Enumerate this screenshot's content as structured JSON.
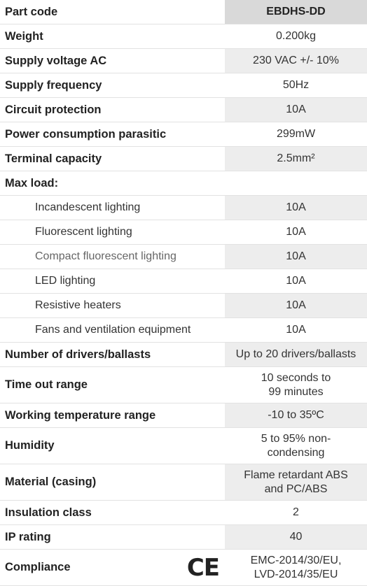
{
  "rows": [
    {
      "label": "Part code",
      "value": "EBDHS-DD"
    },
    {
      "label": "Weight",
      "value": "0.200kg"
    },
    {
      "label": "Supply voltage AC",
      "value": "230 VAC +/- 10%"
    },
    {
      "label": "Supply frequency",
      "value": "50Hz"
    },
    {
      "label": "Circuit protection",
      "value": "10A"
    },
    {
      "label": "Power consumption parasitic",
      "value": "299mW"
    },
    {
      "label": "Terminal capacity",
      "value": "2.5mm²"
    },
    {
      "label": "Max load:",
      "value": ""
    },
    {
      "label": "Incandescent lighting",
      "value": "10A"
    },
    {
      "label": "Fluorescent lighting",
      "value": "10A"
    },
    {
      "label": "Compact fluorescent lighting",
      "value": "10A"
    },
    {
      "label": "LED lighting",
      "value": "10A"
    },
    {
      "label": "Resistive heaters",
      "value": "10A"
    },
    {
      "label": "Fans and ventilation equipment",
      "value": "10A"
    },
    {
      "label": "Number of drivers/ballasts",
      "value": "Up to 20 drivers/ballasts"
    },
    {
      "label": "Time out range",
      "value_line1": "10 seconds to",
      "value_line2": "99 minutes"
    },
    {
      "label": "Working temperature range",
      "value": "-10 to 35ºC"
    },
    {
      "label": "Humidity",
      "value_line1": "5 to 95% non-",
      "value_line2": "condensing"
    },
    {
      "label": "Material (casing)",
      "value_line1": "Flame retardant ABS",
      "value_line2": "and PC/ABS"
    },
    {
      "label": "Insulation class",
      "value": "2"
    },
    {
      "label": "IP rating",
      "value": "40"
    },
    {
      "label": "Compliance",
      "value_line1": "EMC-2014/30/EU,",
      "value_line2": "LVD-2014/35/EU",
      "mark": "CE"
    }
  ]
}
